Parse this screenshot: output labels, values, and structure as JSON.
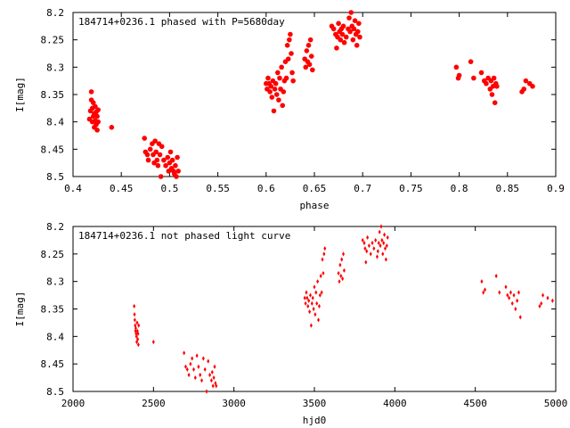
{
  "chart_data": [
    {
      "type": "scatter",
      "title": "184714+0236.1 phased with P=5680day",
      "xlabel": "phase",
      "ylabel": "I[mag]",
      "xlim": [
        0.4,
        0.9
      ],
      "ylim": [
        8.5,
        8.2
      ],
      "y_inverted": true,
      "grid": false,
      "marker_color": "#ff0000",
      "xticks": [
        "0.4",
        "0.45",
        "0.5",
        "0.55",
        "0.6",
        "0.65",
        "0.7",
        "0.75",
        "0.8",
        "0.85",
        "0.9"
      ],
      "yticks": [
        "8.2",
        "8.25",
        "8.3",
        "8.35",
        "8.4",
        "8.45",
        "8.5"
      ],
      "series": [
        {
          "points": [
            [
              0.417,
              8.395
            ],
            [
              0.418,
              8.38
            ],
            [
              0.419,
              8.345
            ],
            [
              0.419,
              8.36
            ],
            [
              0.42,
              8.375
            ],
            [
              0.42,
              8.4
            ],
            [
              0.421,
              8.39
            ],
            [
              0.421,
              8.365
            ],
            [
              0.422,
              8.385
            ],
            [
              0.422,
              8.41
            ],
            [
              0.423,
              8.372
            ],
            [
              0.423,
              8.398
            ],
            [
              0.424,
              8.382
            ],
            [
              0.424,
              8.405
            ],
            [
              0.425,
              8.39
            ],
            [
              0.425,
              8.415
            ],
            [
              0.426,
              8.378
            ],
            [
              0.426,
              8.4
            ],
            [
              0.44,
              8.41
            ],
            [
              0.474,
              8.43
            ],
            [
              0.475,
              8.455
            ],
            [
              0.477,
              8.46
            ],
            [
              0.478,
              8.47
            ],
            [
              0.48,
              8.45
            ],
            [
              0.482,
              8.44
            ],
            [
              0.483,
              8.46
            ],
            [
              0.484,
              8.475
            ],
            [
              0.485,
              8.435
            ],
            [
              0.486,
              8.455
            ],
            [
              0.487,
              8.47
            ],
            [
              0.488,
              8.48
            ],
            [
              0.489,
              8.44
            ],
            [
              0.49,
              8.46
            ],
            [
              0.491,
              8.5
            ],
            [
              0.492,
              8.445
            ],
            [
              0.494,
              8.47
            ],
            [
              0.496,
              8.48
            ],
            [
              0.498,
              8.465
            ],
            [
              0.499,
              8.49
            ],
            [
              0.5,
              8.475
            ],
            [
              0.501,
              8.455
            ],
            [
              0.502,
              8.485
            ],
            [
              0.503,
              8.47
            ],
            [
              0.504,
              8.49
            ],
            [
              0.505,
              8.495
            ],
            [
              0.506,
              8.48
            ],
            [
              0.507,
              8.5
            ],
            [
              0.508,
              8.465
            ],
            [
              0.509,
              8.49
            ],
            [
              0.6,
              8.33
            ],
            [
              0.601,
              8.34
            ],
            [
              0.602,
              8.32
            ],
            [
              0.603,
              8.33
            ],
            [
              0.604,
              8.345
            ],
            [
              0.605,
              8.335
            ],
            [
              0.606,
              8.355
            ],
            [
              0.607,
              8.325
            ],
            [
              0.608,
              8.38
            ],
            [
              0.609,
              8.34
            ],
            [
              0.61,
              8.33
            ],
            [
              0.611,
              8.35
            ],
            [
              0.612,
              8.31
            ],
            [
              0.613,
              8.36
            ],
            [
              0.614,
              8.32
            ],
            [
              0.615,
              8.34
            ],
            [
              0.616,
              8.3
            ],
            [
              0.617,
              8.37
            ],
            [
              0.618,
              8.345
            ],
            [
              0.619,
              8.325
            ],
            [
              0.62,
              8.29
            ],
            [
              0.621,
              8.32
            ],
            [
              0.622,
              8.26
            ],
            [
              0.623,
              8.285
            ],
            [
              0.624,
              8.25
            ],
            [
              0.625,
              8.24
            ],
            [
              0.626,
              8.275
            ],
            [
              0.627,
              8.31
            ],
            [
              0.628,
              8.325
            ],
            [
              0.64,
              8.285
            ],
            [
              0.641,
              8.3
            ],
            [
              0.642,
              8.27
            ],
            [
              0.643,
              8.29
            ],
            [
              0.644,
              8.26
            ],
            [
              0.645,
              8.295
            ],
            [
              0.646,
              8.25
            ],
            [
              0.647,
              8.28
            ],
            [
              0.648,
              8.305
            ],
            [
              0.668,
              8.225
            ],
            [
              0.67,
              8.23
            ],
            [
              0.672,
              8.24
            ],
            [
              0.673,
              8.265
            ],
            [
              0.674,
              8.245
            ],
            [
              0.675,
              8.22
            ],
            [
              0.676,
              8.235
            ],
            [
              0.677,
              8.25
            ],
            [
              0.678,
              8.23
            ],
            [
              0.679,
              8.24
            ],
            [
              0.68,
              8.225
            ],
            [
              0.681,
              8.255
            ],
            [
              0.683,
              8.245
            ],
            [
              0.685,
              8.23
            ],
            [
              0.686,
              8.21
            ],
            [
              0.687,
              8.235
            ],
            [
              0.688,
              8.2
            ],
            [
              0.689,
              8.225
            ],
            [
              0.69,
              8.25
            ],
            [
              0.691,
              8.23
            ],
            [
              0.692,
              8.215
            ],
            [
              0.693,
              8.24
            ],
            [
              0.694,
              8.26
            ],
            [
              0.695,
              8.235
            ],
            [
              0.696,
              8.22
            ],
            [
              0.697,
              8.245
            ],
            [
              0.797,
              8.3
            ],
            [
              0.799,
              8.32
            ],
            [
              0.8,
              8.315
            ],
            [
              0.812,
              8.29
            ],
            [
              0.815,
              8.32
            ],
            [
              0.823,
              8.31
            ],
            [
              0.826,
              8.325
            ],
            [
              0.828,
              8.33
            ],
            [
              0.83,
              8.32
            ],
            [
              0.832,
              8.34
            ],
            [
              0.833,
              8.325
            ],
            [
              0.834,
              8.35
            ],
            [
              0.835,
              8.335
            ],
            [
              0.836,
              8.32
            ],
            [
              0.837,
              8.365
            ],
            [
              0.838,
              8.33
            ],
            [
              0.839,
              8.335
            ],
            [
              0.865,
              8.345
            ],
            [
              0.867,
              8.34
            ],
            [
              0.869,
              8.325
            ],
            [
              0.873,
              8.33
            ],
            [
              0.876,
              8.335
            ]
          ]
        }
      ]
    },
    {
      "type": "scatter",
      "title": "184714+0236.1 not phased light curve",
      "xlabel": "hjd0",
      "ylabel": "I[mag]",
      "xlim": [
        2000,
        5000
      ],
      "ylim": [
        8.5,
        8.2
      ],
      "y_inverted": true,
      "grid": false,
      "marker_color": "#ff0000",
      "xticks": [
        "2000",
        "2500",
        "3000",
        "3500",
        "4000",
        "4500",
        "5000"
      ],
      "yticks": [
        "8.2",
        "8.25",
        "8.3",
        "8.35",
        "8.4",
        "8.45",
        "8.5"
      ],
      "series": [
        {
          "points": [
            [
              2380,
              8.345
            ],
            [
              2382,
              8.36
            ],
            [
              2384,
              8.37
            ],
            [
              2386,
              8.38
            ],
            [
              2388,
              8.39
            ],
            [
              2390,
              8.385
            ],
            [
              2392,
              8.395
            ],
            [
              2394,
              8.4
            ],
            [
              2396,
              8.41
            ],
            [
              2398,
              8.375
            ],
            [
              2400,
              8.39
            ],
            [
              2402,
              8.405
            ],
            [
              2404,
              8.395
            ],
            [
              2406,
              8.415
            ],
            [
              2408,
              8.38
            ],
            [
              2500,
              8.41
            ],
            [
              2690,
              8.43
            ],
            [
              2700,
              8.455
            ],
            [
              2710,
              8.46
            ],
            [
              2720,
              8.47
            ],
            [
              2730,
              8.45
            ],
            [
              2740,
              8.44
            ],
            [
              2750,
              8.46
            ],
            [
              2760,
              8.475
            ],
            [
              2770,
              8.435
            ],
            [
              2780,
              8.455
            ],
            [
              2790,
              8.47
            ],
            [
              2800,
              8.48
            ],
            [
              2810,
              8.44
            ],
            [
              2820,
              8.46
            ],
            [
              2830,
              8.5
            ],
            [
              2840,
              8.445
            ],
            [
              2850,
              8.47
            ],
            [
              2860,
              8.48
            ],
            [
              2865,
              8.465
            ],
            [
              2870,
              8.49
            ],
            [
              2875,
              8.475
            ],
            [
              2880,
              8.455
            ],
            [
              2885,
              8.485
            ],
            [
              2890,
              8.49
            ],
            [
              3440,
              8.33
            ],
            [
              3445,
              8.34
            ],
            [
              3450,
              8.32
            ],
            [
              3455,
              8.33
            ],
            [
              3460,
              8.345
            ],
            [
              3465,
              8.335
            ],
            [
              3470,
              8.355
            ],
            [
              3475,
              8.325
            ],
            [
              3480,
              8.38
            ],
            [
              3485,
              8.34
            ],
            [
              3490,
              8.33
            ],
            [
              3495,
              8.35
            ],
            [
              3500,
              8.31
            ],
            [
              3505,
              8.36
            ],
            [
              3510,
              8.32
            ],
            [
              3515,
              8.34
            ],
            [
              3520,
              8.3
            ],
            [
              3525,
              8.37
            ],
            [
              3530,
              8.345
            ],
            [
              3535,
              8.325
            ],
            [
              3540,
              8.29
            ],
            [
              3545,
              8.32
            ],
            [
              3550,
              8.26
            ],
            [
              3555,
              8.285
            ],
            [
              3560,
              8.25
            ],
            [
              3565,
              8.24
            ],
            [
              3650,
              8.285
            ],
            [
              3655,
              8.3
            ],
            [
              3660,
              8.27
            ],
            [
              3665,
              8.29
            ],
            [
              3670,
              8.26
            ],
            [
              3675,
              8.295
            ],
            [
              3680,
              8.25
            ],
            [
              3685,
              8.28
            ],
            [
              3800,
              8.225
            ],
            [
              3810,
              8.23
            ],
            [
              3815,
              8.24
            ],
            [
              3820,
              8.265
            ],
            [
              3825,
              8.245
            ],
            [
              3830,
              8.22
            ],
            [
              3840,
              8.235
            ],
            [
              3850,
              8.25
            ],
            [
              3860,
              8.23
            ],
            [
              3870,
              8.24
            ],
            [
              3880,
              8.225
            ],
            [
              3890,
              8.255
            ],
            [
              3895,
              8.245
            ],
            [
              3900,
              8.23
            ],
            [
              3905,
              8.21
            ],
            [
              3910,
              8.235
            ],
            [
              3915,
              8.2
            ],
            [
              3920,
              8.225
            ],
            [
              3925,
              8.25
            ],
            [
              3930,
              8.23
            ],
            [
              3935,
              8.215
            ],
            [
              3940,
              8.24
            ],
            [
              3945,
              8.26
            ],
            [
              3950,
              8.235
            ],
            [
              3955,
              8.22
            ],
            [
              4540,
              8.3
            ],
            [
              4550,
              8.32
            ],
            [
              4560,
              8.315
            ],
            [
              4630,
              8.29
            ],
            [
              4650,
              8.32
            ],
            [
              4690,
              8.31
            ],
            [
              4700,
              8.325
            ],
            [
              4710,
              8.33
            ],
            [
              4720,
              8.32
            ],
            [
              4730,
              8.34
            ],
            [
              4740,
              8.325
            ],
            [
              4750,
              8.35
            ],
            [
              4760,
              8.335
            ],
            [
              4770,
              8.32
            ],
            [
              4780,
              8.365
            ],
            [
              4900,
              8.345
            ],
            [
              4910,
              8.34
            ],
            [
              4920,
              8.325
            ],
            [
              4950,
              8.33
            ],
            [
              4980,
              8.335
            ]
          ]
        }
      ]
    }
  ]
}
